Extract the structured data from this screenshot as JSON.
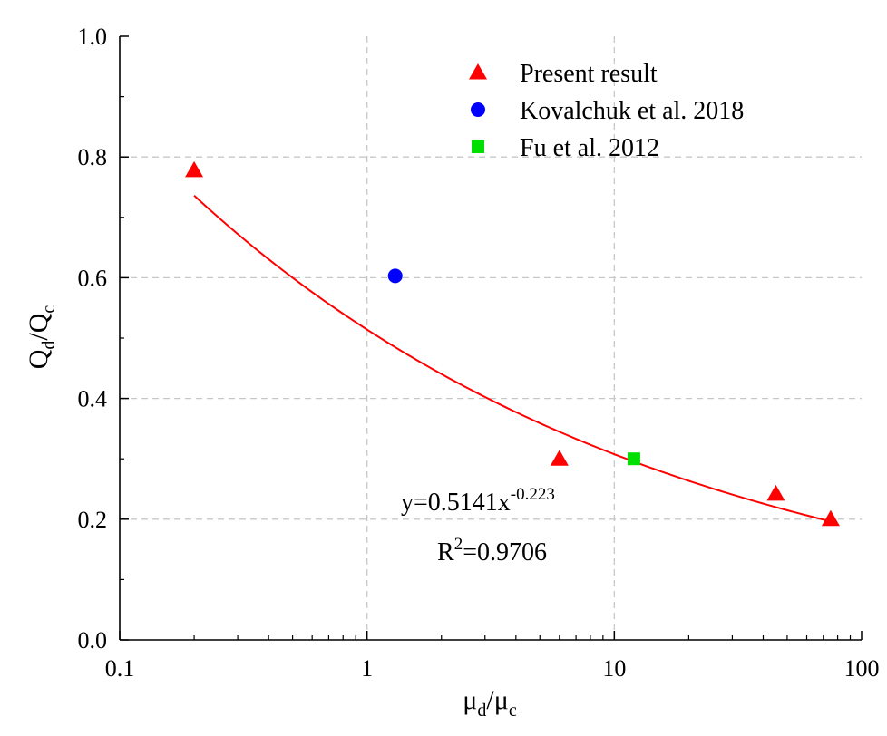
{
  "chart_data": {
    "type": "scatter",
    "xscale": "log",
    "xlim": [
      0.1,
      100
    ],
    "ylim": [
      0.0,
      1.0
    ],
    "x_ticks": [
      0.1,
      1,
      10,
      100
    ],
    "x_tick_labels": [
      "0.1",
      "1",
      "10",
      "100"
    ],
    "y_ticks": [
      0.0,
      0.2,
      0.4,
      0.6,
      0.8,
      1.0
    ],
    "y_tick_labels": [
      "0.0",
      "0.2",
      "0.4",
      "0.6",
      "0.8",
      "1.0"
    ],
    "xlabel": {
      "base1": "μ",
      "sub1": "d",
      "mid": "/μ",
      "sub2": "c"
    },
    "ylabel": {
      "base1": "Q",
      "sub1": "d",
      "mid": "/Q",
      "sub2": "c"
    },
    "grid": true,
    "legend_position": "top-right",
    "series": [
      {
        "name": "Present result",
        "marker": "triangle",
        "color": "#ff0000",
        "x": [
          0.2,
          6,
          45,
          75
        ],
        "y": [
          0.778,
          0.3,
          0.242,
          0.2
        ]
      },
      {
        "name": "Kovalchuk et al. 2018",
        "marker": "circle",
        "color": "#0000ff",
        "x": [
          1.3
        ],
        "y": [
          0.603
        ]
      },
      {
        "name": "Fu et al. 2012",
        "marker": "square",
        "color": "#00e000",
        "x": [
          12
        ],
        "y": [
          0.3
        ]
      }
    ],
    "fit": {
      "coef": 0.5141,
      "exponent": -0.223,
      "x_range": [
        0.2,
        75
      ],
      "color": "#ff0000",
      "equation": {
        "prefix": "y=0.5141x",
        "sup": "-0.223"
      },
      "r2": {
        "prefix": "R",
        "sup": "2",
        "suffix": "=0.9706"
      }
    }
  }
}
